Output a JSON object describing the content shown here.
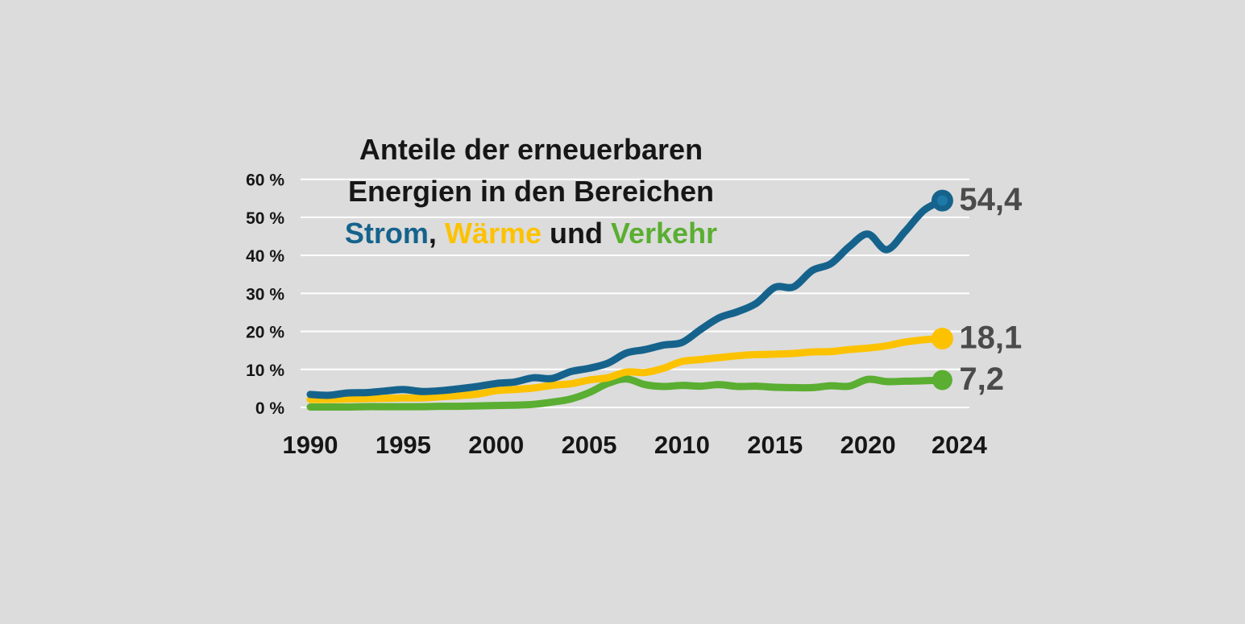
{
  "title": {
    "line1": "Anteile der erneuerbaren",
    "line2": "Energien in den Bereichen",
    "line3_segments": [
      {
        "text": "Strom",
        "color": "#15638c"
      },
      {
        "text": ", ",
        "color": "#161616"
      },
      {
        "text": "Wärme",
        "color": "#fcc200"
      },
      {
        "text": " und ",
        "color": "#161616"
      },
      {
        "text": "Verkehr",
        "color": "#5aae31"
      }
    ]
  },
  "colors": {
    "background": "#dcdcdc",
    "gridline": "#ffffff",
    "axis_text": "#161616",
    "value_label": "#4b4b4b"
  },
  "chart_data": {
    "type": "line",
    "title": "Anteile der erneuerbaren Energien in den Bereichen Strom, Wärme und Verkehr",
    "xlabel": "",
    "ylabel": "",
    "xlim": [
      1990,
      2024
    ],
    "ylim": [
      0,
      60
    ],
    "grid": "horizontal",
    "legend_position": "title-colored-words",
    "x": [
      1990,
      1991,
      1992,
      1993,
      1994,
      1995,
      1996,
      1997,
      1998,
      1999,
      2000,
      2001,
      2002,
      2003,
      2004,
      2005,
      2006,
      2007,
      2008,
      2009,
      2010,
      2011,
      2012,
      2013,
      2014,
      2015,
      2016,
      2017,
      2018,
      2019,
      2020,
      2021,
      2022,
      2023,
      2024
    ],
    "x_ticks": [
      {
        "value": 1990,
        "label": "1990"
      },
      {
        "value": 1995,
        "label": "1995"
      },
      {
        "value": 2000,
        "label": "2000"
      },
      {
        "value": 2005,
        "label": "2005"
      },
      {
        "value": 2010,
        "label": "2010"
      },
      {
        "value": 2015,
        "label": "2015"
      },
      {
        "value": 2020,
        "label": "2020"
      },
      {
        "value": 2024,
        "label": "2024"
      }
    ],
    "y_ticks": [
      {
        "value": 0,
        "label": "0 %"
      },
      {
        "value": 10,
        "label": "10 %"
      },
      {
        "value": 20,
        "label": "20 %"
      },
      {
        "value": 30,
        "label": "30 %"
      },
      {
        "value": 40,
        "label": "40 %"
      },
      {
        "value": 50,
        "label": "50 %"
      },
      {
        "value": 60,
        "label": "60 %"
      }
    ],
    "series": [
      {
        "id": "verkehr",
        "name": "Verkehr",
        "color": "#5aae31",
        "end_label": "7,2",
        "end_value": 7.2,
        "marker_r": 12.5,
        "values": [
          0.1,
          0.1,
          0.1,
          0.2,
          0.2,
          0.2,
          0.2,
          0.3,
          0.3,
          0.4,
          0.5,
          0.6,
          0.8,
          1.4,
          2.2,
          3.9,
          6.3,
          7.5,
          6.0,
          5.5,
          5.8,
          5.6,
          6.0,
          5.5,
          5.6,
          5.3,
          5.2,
          5.2,
          5.7,
          5.6,
          7.4,
          6.8,
          6.9,
          7.0,
          7.2
        ]
      },
      {
        "id": "waerme",
        "name": "Wärme",
        "color": "#fcc200",
        "end_label": "18,1",
        "end_value": 18.1,
        "marker_r": 13.5,
        "values": [
          2.1,
          2.1,
          2.2,
          2.3,
          2.4,
          2.5,
          2.5,
          2.8,
          3.1,
          3.5,
          4.4,
          4.7,
          5.1,
          5.8,
          6.2,
          7.2,
          7.8,
          9.3,
          9.2,
          10.3,
          12.1,
          12.6,
          13.1,
          13.6,
          13.9,
          14.0,
          14.2,
          14.6,
          14.7,
          15.2,
          15.6,
          16.2,
          17.2,
          17.8,
          18.1
        ]
      },
      {
        "id": "strom",
        "name": "Strom",
        "color": "#15638c",
        "end_label": "54,4",
        "end_value": 54.4,
        "marker_r": 13.5,
        "marker_inner_color": "#1d79a8",
        "marker_inner_r": 6.5,
        "values": [
          3.4,
          3.2,
          3.8,
          3.9,
          4.3,
          4.7,
          4.2,
          4.4,
          4.9,
          5.5,
          6.3,
          6.7,
          7.8,
          7.6,
          9.4,
          10.3,
          11.6,
          14.3,
          15.2,
          16.4,
          17.1,
          20.5,
          23.6,
          25.2,
          27.4,
          31.6,
          31.7,
          36.0,
          37.8,
          42.3,
          45.6,
          41.5,
          46.3,
          51.8,
          54.4
        ]
      }
    ]
  }
}
